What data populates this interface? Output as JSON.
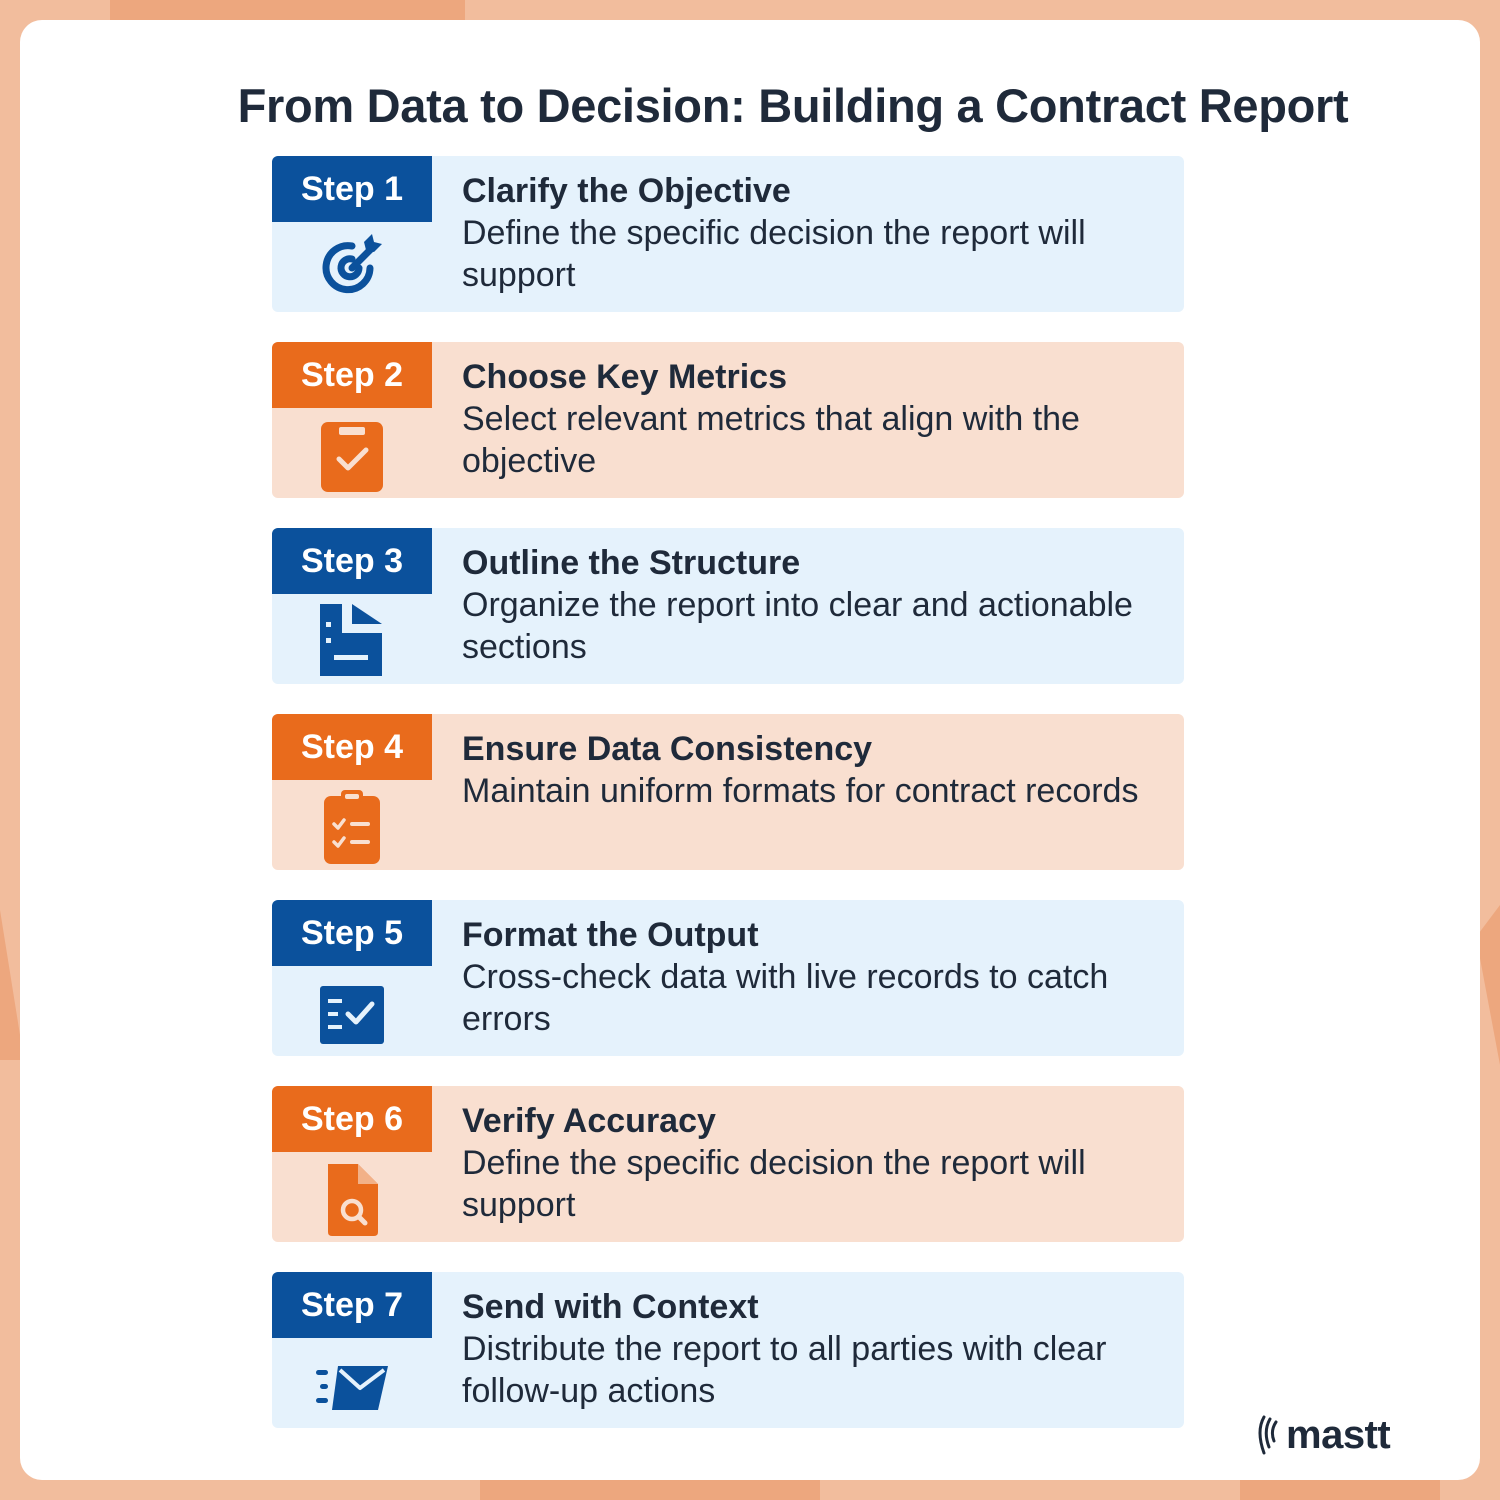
{
  "title": "From Data to Decision: Building a Contract Report",
  "colors": {
    "blue": "#0b519c",
    "orange": "#e96b1c",
    "blue_bg": "#e5f2fc",
    "orange_bg": "#f9dfd0",
    "text": "#1f2a3a"
  },
  "steps": [
    {
      "tag": "Step 1",
      "title": "Clarify the Objective",
      "desc": "Define the specific decision the report will support",
      "icon": "target-icon",
      "theme": "blue"
    },
    {
      "tag": "Step 2",
      "title": "Choose Key Metrics",
      "desc": "Select relevant metrics that align with the objective",
      "icon": "clipboard-check-icon",
      "theme": "orange"
    },
    {
      "tag": "Step 3",
      "title": "Outline the Structure",
      "desc": "Organize the report into clear and actionable sections",
      "icon": "document-outline-icon",
      "theme": "blue"
    },
    {
      "tag": "Step 4",
      "title": "Ensure Data Consistency",
      "desc": "Maintain uniform formats for contract records",
      "icon": "checklist-clipboard-icon",
      "theme": "orange"
    },
    {
      "tag": "Step 5",
      "title": "Format the Output",
      "desc": "Cross-check data with live records to catch errors",
      "icon": "list-check-icon",
      "theme": "blue"
    },
    {
      "tag": "Step 6",
      "title": "Verify Accuracy",
      "desc": "Define the specific decision the report will support",
      "icon": "file-search-icon",
      "theme": "orange"
    },
    {
      "tag": "Step 7",
      "title": "Send with Context",
      "desc": "Distribute the report to all parties with clear follow-up actions",
      "icon": "send-mail-icon",
      "theme": "blue"
    }
  ],
  "logo": {
    "text": "mastt",
    "icon": "mastt-logo-icon"
  }
}
